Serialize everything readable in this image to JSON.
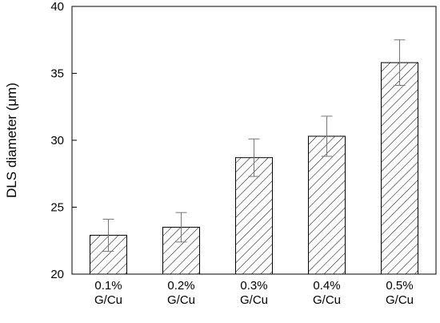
{
  "chart_data": {
    "type": "bar",
    "categories": [
      [
        "0.1%",
        "G/Cu"
      ],
      [
        "0.2%",
        "G/Cu"
      ],
      [
        "0.3%",
        "G/Cu"
      ],
      [
        "0.4%",
        "G/Cu"
      ],
      [
        "0.5%",
        "G/Cu"
      ]
    ],
    "values": [
      22.9,
      23.5,
      28.7,
      30.3,
      35.8
    ],
    "errors": [
      1.2,
      1.1,
      1.4,
      1.5,
      1.7
    ],
    "ylabel": "DLS diameter (μm)",
    "xlabel": "",
    "ylim": [
      20,
      40
    ],
    "yticks": [
      "20",
      "25",
      "30",
      "35",
      "40"
    ],
    "grid": false,
    "bar_fill": "diagonal-hatch",
    "bar_color": "#000000",
    "errorbar_color": "#777777"
  }
}
